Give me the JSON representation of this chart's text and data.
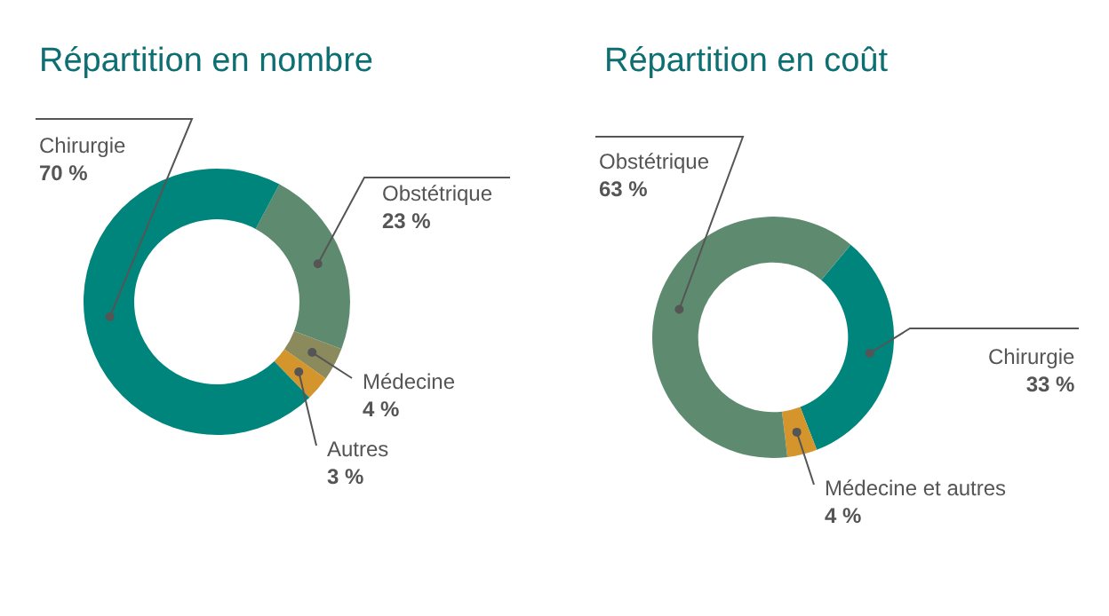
{
  "chart_data": [
    {
      "type": "donut",
      "title": "Répartition en nombre",
      "categories": [
        "Obstétrique",
        "Médecine",
        "Autres",
        "Chirurgie"
      ],
      "values": [
        23,
        4,
        3,
        70
      ],
      "colors": [
        "#5e8b6f",
        "#8a8a5c",
        "#d4952c",
        "#00857c"
      ],
      "value_labels": [
        "23 %",
        "4 %",
        "3 %",
        "70 %"
      ]
    },
    {
      "type": "donut",
      "title": "Répartition en coût",
      "categories": [
        "Chirurgie",
        "Médecine et autres",
        "Obstétrique"
      ],
      "values": [
        33,
        4,
        63
      ],
      "colors": [
        "#00857c",
        "#d4952c",
        "#5e8b6f"
      ],
      "value_labels": [
        "33 %",
        "4 %",
        "63 %"
      ]
    }
  ]
}
